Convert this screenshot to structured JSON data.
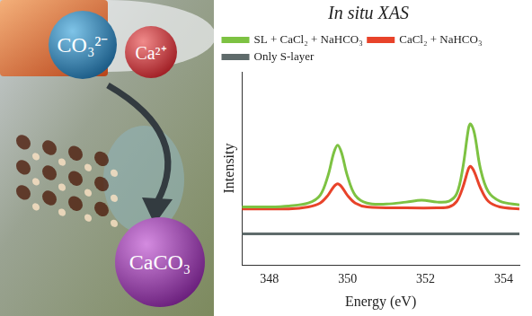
{
  "illustration": {
    "spheres": [
      {
        "label": "CO₃²⁻"
      },
      {
        "label": "Ca²⁺"
      },
      {
        "label": "CaCO₃"
      }
    ]
  },
  "chart_data": {
    "type": "line",
    "title": "In situ XAS",
    "x_label": "Energy (eV)",
    "y_label": "Intensity",
    "xlim": [
      347.3,
      354.4
    ],
    "xticks": [
      348,
      350,
      352,
      354
    ],
    "ylim": [
      0,
      10
    ],
    "tick_labels": "x",
    "grid": false,
    "legend": "upper left",
    "series": [
      {
        "name": "SL + CaCl₂ + NaHCO₃",
        "color": "#7dc242",
        "x": [
          347.3,
          348.0,
          348.5,
          349.0,
          349.3,
          349.5,
          349.65,
          349.75,
          349.85,
          350.0,
          350.2,
          350.5,
          351.0,
          351.5,
          351.9,
          352.3,
          352.6,
          352.8,
          352.95,
          353.1,
          353.15,
          353.25,
          353.4,
          353.6,
          353.9,
          354.4
        ],
        "values": [
          3.0,
          3.0,
          3.05,
          3.2,
          3.6,
          4.6,
          5.8,
          6.2,
          5.8,
          4.6,
          3.6,
          3.2,
          3.15,
          3.25,
          3.35,
          3.25,
          3.3,
          3.7,
          5.0,
          7.1,
          7.3,
          6.8,
          5.0,
          3.8,
          3.3,
          3.1
        ]
      },
      {
        "name": "CaCl₂ + NaHCO₃",
        "color": "#e8432a",
        "x": [
          347.3,
          348.5,
          349.0,
          349.3,
          349.5,
          349.65,
          349.75,
          349.85,
          350.0,
          350.2,
          350.5,
          351.5,
          352.3,
          352.6,
          352.8,
          352.95,
          353.1,
          353.15,
          353.25,
          353.4,
          353.6,
          353.9,
          354.4
        ],
        "values": [
          2.9,
          2.9,
          3.0,
          3.2,
          3.6,
          4.05,
          4.2,
          4.05,
          3.6,
          3.2,
          3.0,
          2.95,
          2.95,
          3.0,
          3.3,
          4.0,
          5.0,
          5.1,
          4.8,
          4.0,
          3.3,
          3.0,
          2.9
        ]
      },
      {
        "name": "Only S-layer",
        "color": "#5f6b6b",
        "x": [
          347.3,
          354.4
        ],
        "values": [
          1.6,
          1.6
        ]
      }
    ]
  }
}
